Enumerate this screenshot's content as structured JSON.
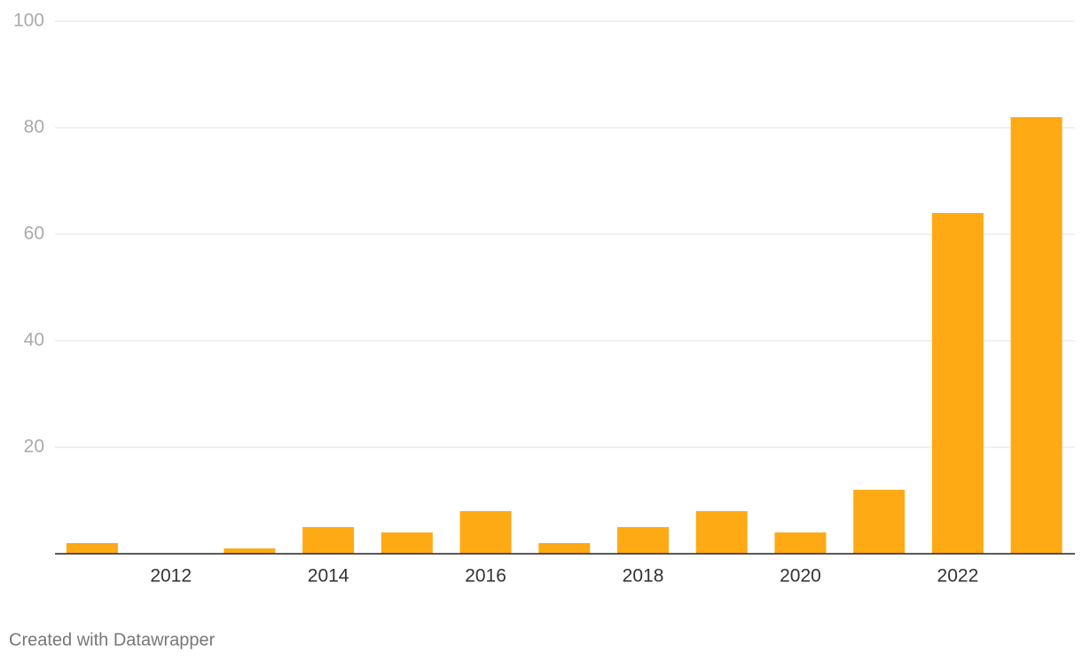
{
  "chart_data": {
    "type": "bar",
    "categories": [
      null,
      "2012",
      null,
      "2014",
      null,
      "2016",
      null,
      "2018",
      null,
      "2020",
      null,
      "2022",
      null
    ],
    "values": [
      2,
      0,
      1,
      5,
      4,
      8,
      2,
      5,
      8,
      4,
      12,
      64,
      82
    ],
    "color": "#fdaa15",
    "ylim": [
      0,
      100
    ],
    "yticks": [
      20,
      40,
      60,
      80,
      100
    ],
    "grid": true,
    "footer": "Created with Datawrapper"
  }
}
